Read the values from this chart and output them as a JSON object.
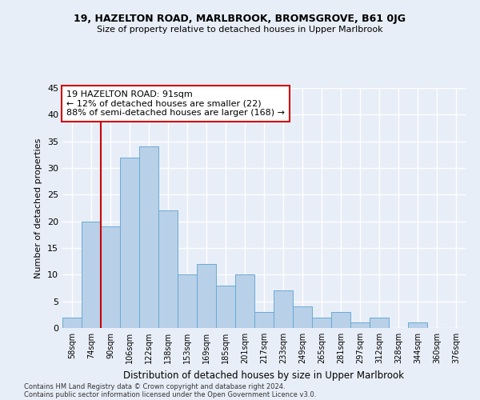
{
  "title": "19, HAZELTON ROAD, MARLBROOK, BROMSGROVE, B61 0JG",
  "subtitle": "Size of property relative to detached houses in Upper Marlbrook",
  "xlabel": "Distribution of detached houses by size in Upper Marlbrook",
  "ylabel": "Number of detached properties",
  "bins": [
    "58sqm",
    "74sqm",
    "90sqm",
    "106sqm",
    "122sqm",
    "138sqm",
    "153sqm",
    "169sqm",
    "185sqm",
    "201sqm",
    "217sqm",
    "233sqm",
    "249sqm",
    "265sqm",
    "281sqm",
    "297sqm",
    "312sqm",
    "328sqm",
    "344sqm",
    "360sqm",
    "376sqm"
  ],
  "values": [
    2,
    20,
    19,
    32,
    34,
    22,
    10,
    12,
    8,
    10,
    3,
    7,
    4,
    2,
    3,
    1,
    2,
    0,
    1,
    0,
    0
  ],
  "bar_color": "#b8d0e8",
  "bar_edge_color": "#6aaad4",
  "highlight_color": "#cc0000",
  "annotation_text": "19 HAZELTON ROAD: 91sqm\n← 12% of detached houses are smaller (22)\n88% of semi-detached houses are larger (168) →",
  "annotation_box_color": "white",
  "annotation_box_edge": "#cc0000",
  "bg_color": "#e8eef8",
  "plot_bg_color": "#e8eef8",
  "grid_color": "white",
  "footnote1": "Contains HM Land Registry data © Crown copyright and database right 2024.",
  "footnote2": "Contains public sector information licensed under the Open Government Licence v3.0.",
  "ylim": [
    0,
    45
  ],
  "yticks": [
    0,
    5,
    10,
    15,
    20,
    25,
    30,
    35,
    40,
    45
  ]
}
